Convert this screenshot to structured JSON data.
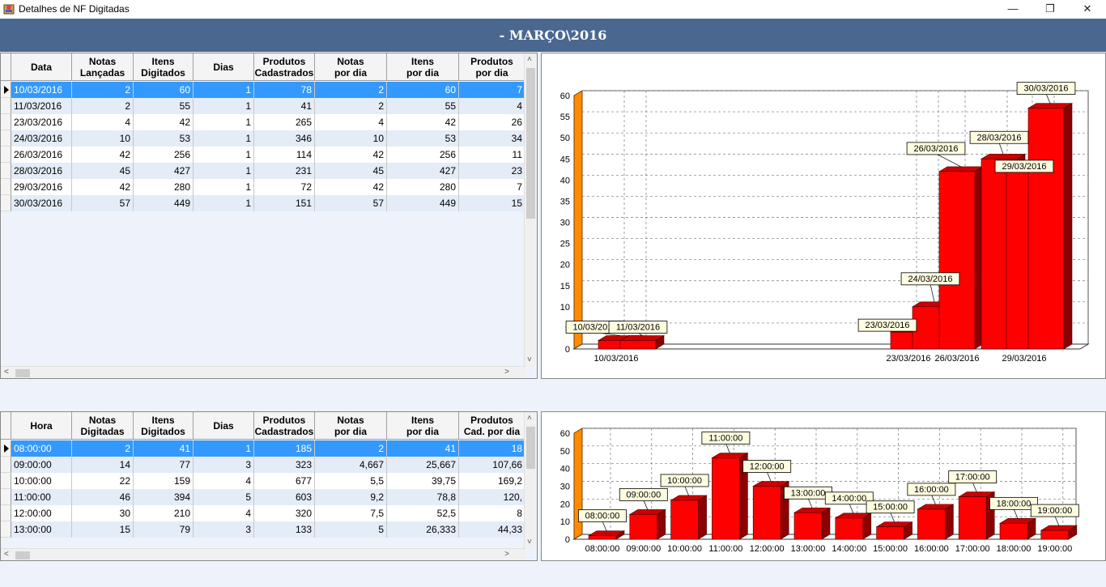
{
  "window": {
    "title": "Detalhes de NF  Digitadas"
  },
  "header": {
    "title": "- MARÇO\\2016"
  },
  "grid1": {
    "columns": [
      "Data",
      "Notas\nLançadas",
      "Itens\nDigitados",
      "Dias",
      "Produtos\nCadastrados",
      "Notas\npor dia",
      "Itens\npor dia",
      "Produtos\npor dia"
    ],
    "rows": [
      [
        "10/03/2016",
        "2",
        "60",
        "1",
        "78",
        "2",
        "60",
        "7"
      ],
      [
        "11/03/2016",
        "2",
        "55",
        "1",
        "41",
        "2",
        "55",
        "4"
      ],
      [
        "23/03/2016",
        "4",
        "42",
        "1",
        "265",
        "4",
        "42",
        "26"
      ],
      [
        "24/03/2016",
        "10",
        "53",
        "1",
        "346",
        "10",
        "53",
        "34"
      ],
      [
        "26/03/2016",
        "42",
        "256",
        "1",
        "114",
        "42",
        "256",
        "11"
      ],
      [
        "28/03/2016",
        "45",
        "427",
        "1",
        "231",
        "45",
        "427",
        "23"
      ],
      [
        "29/03/2016",
        "42",
        "280",
        "1",
        "72",
        "42",
        "280",
        "7"
      ],
      [
        "30/03/2016",
        "57",
        "449",
        "1",
        "151",
        "57",
        "449",
        "15"
      ]
    ],
    "selected_row": 0
  },
  "grid2": {
    "columns": [
      "Hora",
      "Notas\nDigitadas",
      "Itens\nDigitados",
      "Dias",
      "Produtos\nCadastrados",
      "Notas\npor dia",
      "Itens\npor dia",
      "Produtos\nCad. por dia"
    ],
    "rows": [
      [
        "08:00:00",
        "2",
        "41",
        "1",
        "185",
        "2",
        "41",
        "18"
      ],
      [
        "09:00:00",
        "14",
        "77",
        "3",
        "323",
        "4,667",
        "25,667",
        "107,66"
      ],
      [
        "10:00:00",
        "22",
        "159",
        "4",
        "677",
        "5,5",
        "39,75",
        "169,2"
      ],
      [
        "11:00:00",
        "46",
        "394",
        "5",
        "603",
        "9,2",
        "78,8",
        "120,"
      ],
      [
        "12:00:00",
        "30",
        "210",
        "4",
        "320",
        "7,5",
        "52,5",
        "8"
      ],
      [
        "13:00:00",
        "15",
        "79",
        "3",
        "133",
        "5",
        "26,333",
        "44,33"
      ]
    ],
    "selected_row": 0
  },
  "chart_data": [
    {
      "type": "bar",
      "categories": [
        "10/03/2016",
        "11/03/2016",
        "23/03/2016",
        "24/03/2016",
        "26/03/2016",
        "28/03/2016",
        "29/03/2016",
        "30/03/2016"
      ],
      "values": [
        2,
        2,
        4,
        10,
        42,
        45,
        42,
        57
      ],
      "x_tick_labels": [
        "10/03/2016",
        "23/03/2016",
        "26/03/2016",
        "29/03/2016"
      ],
      "ylim": [
        0,
        60
      ],
      "yticks": [
        0,
        5,
        10,
        15,
        20,
        25,
        30,
        35,
        40,
        45,
        50,
        55,
        60
      ],
      "grid": true,
      "bar_color": "#ff0000",
      "wall_color": "#ff8c00"
    },
    {
      "type": "bar",
      "categories": [
        "08:00:00",
        "09:00:00",
        "10:00:00",
        "11:00:00",
        "12:00:00",
        "13:00:00",
        "14:00:00",
        "15:00:00",
        "16:00:00",
        "17:00:00",
        "18:00:00",
        "19:00:00"
      ],
      "values": [
        2,
        14,
        22,
        46,
        30,
        15,
        12,
        7,
        17,
        24,
        9,
        5
      ],
      "ylim": [
        0,
        60
      ],
      "yticks": [
        0,
        10,
        20,
        30,
        40,
        50,
        60
      ],
      "grid": true,
      "bar_color": "#ff0000",
      "wall_color": "#ff8c00"
    }
  ]
}
